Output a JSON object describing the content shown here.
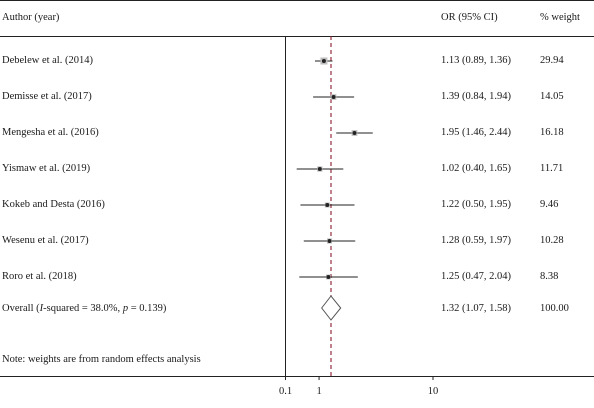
{
  "chart_data": {
    "type": "forest",
    "header": {
      "author": "Author (year)",
      "ci": "OR (95% CI)",
      "weight": "% weight"
    },
    "studies": [
      {
        "label": "Debelew et al. (2014)",
        "or": 1.13,
        "lo": 0.89,
        "hi": 1.36,
        "ci_text": "1.13 (0.89, 1.36)",
        "weight": "29.94"
      },
      {
        "label": "Demisse et al. (2017)",
        "or": 1.39,
        "lo": 0.84,
        "hi": 1.94,
        "ci_text": "1.39 (0.84, 1.94)",
        "weight": "14.05"
      },
      {
        "label": "Mengesha et al. (2016)",
        "or": 1.95,
        "lo": 1.46,
        "hi": 2.44,
        "ci_text": "1.95 (1.46, 2.44)",
        "weight": "16.18"
      },
      {
        "label": "Yismaw et al. (2019)",
        "or": 1.02,
        "lo": 0.4,
        "hi": 1.65,
        "ci_text": "1.02 (0.40, 1.65)",
        "weight": "11.71"
      },
      {
        "label": "Kokeb and Desta (2016)",
        "or": 1.22,
        "lo": 0.5,
        "hi": 1.95,
        "ci_text": "1.22 (0.50, 1.95)",
        "weight": "9.46"
      },
      {
        "label": "Wesenu et al. (2017)",
        "or": 1.28,
        "lo": 0.59,
        "hi": 1.97,
        "ci_text": "1.28 (0.59, 1.97)",
        "weight": "10.28"
      },
      {
        "label": "Roro et al. (2018)",
        "or": 1.25,
        "lo": 0.47,
        "hi": 2.04,
        "ci_text": "1.25 (0.47, 2.04)",
        "weight": "8.38"
      }
    ],
    "overall": {
      "label_prefix": "Overall (",
      "label_i": "I",
      "label_mid": "-squared = 38.0%, ",
      "label_p": "p",
      "label_suffix": " = 0.139)",
      "or": 1.32,
      "lo": 1.07,
      "hi": 1.58,
      "ci_text": "1.32 (1.07, 1.58)",
      "weight": "100.00"
    },
    "note": "Note: weights are from random effects analysis",
    "x_ticks": [
      {
        "value": 0.1,
        "label": "0.1"
      },
      {
        "value": 1,
        "label": "1"
      },
      {
        "value": 10,
        "label": "10"
      }
    ],
    "null_line": 1,
    "colors": {
      "text": "#1a1a1a",
      "axis": "#222222",
      "overall_line": "#8b1a2b",
      "marker": "#222222"
    }
  }
}
